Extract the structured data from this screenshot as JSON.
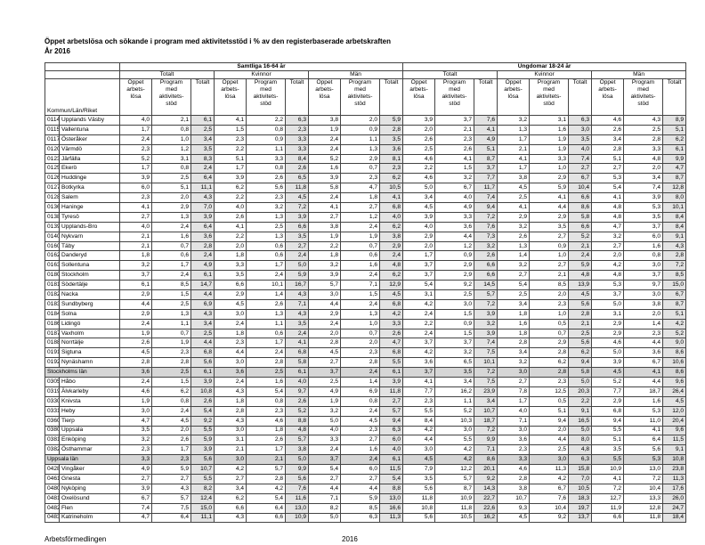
{
  "header": {
    "title": "Öppet arbetslösa och sökande i program med aktivitetsstöd i % av den registerbaserade arbetskraften",
    "subtitle": "År 2016"
  },
  "table": {
    "groups": [
      {
        "label": "Samtliga 16-64 år",
        "subgroups": [
          "Totalt",
          "Kvinnor",
          "Män"
        ]
      },
      {
        "label": "Ungdomar 18-24 år",
        "subgroups": [
          "Totalt",
          "Kvinnor",
          "Män"
        ]
      }
    ],
    "column_headers": [
      [
        "Öppet",
        "arbets-",
        "lösa"
      ],
      [
        "Program",
        "med",
        "aktivitets-",
        "stöd"
      ],
      [
        "Totalt"
      ]
    ],
    "stub_header": "Kommun/Län/Riket",
    "rows": [
      {
        "code": "0114",
        "name": "Upplands Väsby",
        "values": [
          "4,0",
          "2,1",
          "6,1",
          "4,1",
          "2,2",
          "6,3",
          "3,8",
          "2,0",
          "5,9",
          "3,9",
          "3,7",
          "7,6",
          "3,2",
          "3,1",
          "6,3",
          "4,6",
          "4,3",
          "8,9"
        ]
      },
      {
        "code": "0115",
        "name": "Vallentuna",
        "values": [
          "1,7",
          "0,8",
          "2,5",
          "1,5",
          "0,8",
          "2,3",
          "1,9",
          "0,9",
          "2,8",
          "2,0",
          "2,1",
          "4,1",
          "1,3",
          "1,6",
          "3,0",
          "2,6",
          "2,5",
          "5,1"
        ]
      },
      {
        "code": "0117",
        "name": "Österåker",
        "values": [
          "2,4",
          "1,0",
          "3,4",
          "2,3",
          "0,9",
          "3,3",
          "2,4",
          "1,1",
          "3,5",
          "2,6",
          "2,3",
          "4,9",
          "1,7",
          "1,9",
          "3,5",
          "3,4",
          "2,8",
          "6,2"
        ]
      },
      {
        "code": "0120",
        "name": "Värmdö",
        "values": [
          "2,3",
          "1,2",
          "3,5",
          "2,2",
          "1,1",
          "3,3",
          "2,4",
          "1,3",
          "3,6",
          "2,5",
          "2,6",
          "5,1",
          "2,1",
          "1,9",
          "4,0",
          "2,8",
          "3,3",
          "6,1"
        ]
      },
      {
        "code": "0123",
        "name": "Järfälla",
        "values": [
          "5,2",
          "3,1",
          "8,3",
          "5,1",
          "3,3",
          "8,4",
          "5,2",
          "2,9",
          "8,1",
          "4,6",
          "4,1",
          "8,7",
          "4,1",
          "3,3",
          "7,4",
          "5,1",
          "4,8",
          "9,9"
        ]
      },
      {
        "code": "0125",
        "name": "Ekerö",
        "values": [
          "1,7",
          "0,8",
          "2,4",
          "1,7",
          "0,8",
          "2,6",
          "1,6",
          "0,7",
          "2,3",
          "2,2",
          "1,5",
          "3,7",
          "1,7",
          "1,0",
          "2,7",
          "2,7",
          "2,0",
          "4,7"
        ]
      },
      {
        "code": "0126",
        "name": "Huddinge",
        "values": [
          "3,9",
          "2,5",
          "6,4",
          "3,9",
          "2,6",
          "6,5",
          "3,9",
          "2,3",
          "6,2",
          "4,6",
          "3,2",
          "7,7",
          "3,8",
          "2,9",
          "6,7",
          "5,3",
          "3,4",
          "8,7"
        ]
      },
      {
        "code": "0127",
        "name": "Botkyrka",
        "values": [
          "6,0",
          "5,1",
          "11,1",
          "6,2",
          "5,6",
          "11,8",
          "5,8",
          "4,7",
          "10,5",
          "5,0",
          "6,7",
          "11,7",
          "4,5",
          "5,9",
          "10,4",
          "5,4",
          "7,4",
          "12,8"
        ]
      },
      {
        "code": "0128",
        "name": "Salem",
        "values": [
          "2,3",
          "2,0",
          "4,3",
          "2,2",
          "2,3",
          "4,5",
          "2,4",
          "1,8",
          "4,1",
          "3,4",
          "4,0",
          "7,4",
          "2,5",
          "4,1",
          "6,6",
          "4,1",
          "3,9",
          "8,0"
        ]
      },
      {
        "code": "0136",
        "name": "Haninge",
        "values": [
          "4,1",
          "2,9",
          "7,0",
          "4,0",
          "3,2",
          "7,2",
          "4,1",
          "2,7",
          "6,8",
          "4,5",
          "4,9",
          "9,4",
          "4,1",
          "4,4",
          "8,6",
          "4,8",
          "5,3",
          "10,1"
        ]
      },
      {
        "code": "0138",
        "name": "Tyresö",
        "values": [
          "2,7",
          "1,3",
          "3,9",
          "2,6",
          "1,3",
          "3,9",
          "2,7",
          "1,2",
          "4,0",
          "3,9",
          "3,3",
          "7,2",
          "2,9",
          "2,9",
          "5,8",
          "4,8",
          "3,5",
          "8,4"
        ]
      },
      {
        "code": "0139",
        "name": "Upplands-Bro",
        "values": [
          "4,0",
          "2,4",
          "6,4",
          "4,1",
          "2,5",
          "6,6",
          "3,8",
          "2,4",
          "6,2",
          "4,0",
          "3,6",
          "7,6",
          "3,2",
          "3,5",
          "6,6",
          "4,7",
          "3,7",
          "8,4"
        ]
      },
      {
        "code": "0140",
        "name": "Nykvarn",
        "values": [
          "2,1",
          "1,6",
          "3,6",
          "2,2",
          "1,3",
          "3,5",
          "1,9",
          "1,9",
          "3,8",
          "2,9",
          "4,4",
          "7,3",
          "2,6",
          "2,7",
          "5,2",
          "3,2",
          "6,0",
          "9,1"
        ]
      },
      {
        "code": "0160",
        "name": "Täby",
        "values": [
          "2,1",
          "0,7",
          "2,8",
          "2,0",
          "0,6",
          "2,7",
          "2,2",
          "0,7",
          "2,9",
          "2,0",
          "1,2",
          "3,2",
          "1,3",
          "0,9",
          "2,1",
          "2,7",
          "1,6",
          "4,3"
        ]
      },
      {
        "code": "0162",
        "name": "Danderyd",
        "values": [
          "1,8",
          "0,6",
          "2,4",
          "1,8",
          "0,6",
          "2,4",
          "1,8",
          "0,6",
          "2,4",
          "1,7",
          "0,9",
          "2,6",
          "1,4",
          "1,0",
          "2,4",
          "2,0",
          "0,8",
          "2,8"
        ]
      },
      {
        "code": "0163",
        "name": "Sollentuna",
        "values": [
          "3,2",
          "1,7",
          "4,9",
          "3,3",
          "1,7",
          "5,0",
          "3,2",
          "1,6",
          "4,8",
          "3,7",
          "2,9",
          "6,6",
          "3,2",
          "2,7",
          "5,9",
          "4,2",
          "3,0",
          "7,2"
        ]
      },
      {
        "code": "0180",
        "name": "Stockholm",
        "values": [
          "3,7",
          "2,4",
          "6,1",
          "3,5",
          "2,4",
          "5,9",
          "3,9",
          "2,4",
          "6,2",
          "3,7",
          "2,9",
          "6,6",
          "2,7",
          "2,1",
          "4,8",
          "4,8",
          "3,7",
          "8,5"
        ]
      },
      {
        "code": "0181",
        "name": "Södertälje",
        "values": [
          "6,1",
          "8,5",
          "14,7",
          "6,6",
          "10,1",
          "16,7",
          "5,7",
          "7,1",
          "12,9",
          "5,4",
          "9,2",
          "14,5",
          "5,4",
          "8,5",
          "13,9",
          "5,3",
          "9,7",
          "15,0"
        ]
      },
      {
        "code": "0182",
        "name": "Nacka",
        "values": [
          "2,9",
          "1,5",
          "4,4",
          "2,9",
          "1,4",
          "4,3",
          "3,0",
          "1,5",
          "4,5",
          "3,1",
          "2,5",
          "5,7",
          "2,5",
          "2,0",
          "4,5",
          "3,7",
          "3,0",
          "6,7"
        ]
      },
      {
        "code": "0183",
        "name": "Sundbyberg",
        "values": [
          "4,4",
          "2,5",
          "6,9",
          "4,5",
          "2,6",
          "7,1",
          "4,4",
          "2,4",
          "6,8",
          "4,2",
          "3,0",
          "7,2",
          "3,4",
          "2,3",
          "5,6",
          "5,0",
          "3,8",
          "8,7"
        ]
      },
      {
        "code": "0184",
        "name": "Solna",
        "values": [
          "2,9",
          "1,3",
          "4,3",
          "3,0",
          "1,3",
          "4,3",
          "2,9",
          "1,3",
          "4,2",
          "2,4",
          "1,5",
          "3,9",
          "1,8",
          "1,0",
          "2,8",
          "3,1",
          "2,0",
          "5,1"
        ]
      },
      {
        "code": "0186",
        "name": "Lidingö",
        "values": [
          "2,4",
          "1,1",
          "3,4",
          "2,4",
          "1,1",
          "3,5",
          "2,4",
          "1,0",
          "3,3",
          "2,2",
          "0,9",
          "3,2",
          "1,6",
          "0,5",
          "2,1",
          "2,9",
          "1,4",
          "4,2"
        ]
      },
      {
        "code": "0187",
        "name": "Vaxholm",
        "values": [
          "1,9",
          "0,7",
          "2,5",
          "1,8",
          "0,6",
          "2,4",
          "2,0",
          "0,7",
          "2,6",
          "2,4",
          "1,5",
          "3,9",
          "1,8",
          "0,7",
          "2,5",
          "2,9",
          "2,3",
          "5,2"
        ]
      },
      {
        "code": "0188",
        "name": "Norrtälje",
        "values": [
          "2,6",
          "1,9",
          "4,4",
          "2,3",
          "1,7",
          "4,1",
          "2,8",
          "2,0",
          "4,7",
          "3,7",
          "3,7",
          "7,4",
          "2,8",
          "2,9",
          "5,6",
          "4,6",
          "4,4",
          "9,0"
        ]
      },
      {
        "code": "0191",
        "name": "Sigtuna",
        "values": [
          "4,5",
          "2,3",
          "6,8",
          "4,4",
          "2,4",
          "6,8",
          "4,5",
          "2,3",
          "6,8",
          "4,2",
          "3,2",
          "7,5",
          "3,4",
          "2,8",
          "6,2",
          "5,0",
          "3,6",
          "8,6"
        ]
      },
      {
        "code": "0192",
        "name": "Nynäshamn",
        "values": [
          "2,8",
          "2,8",
          "5,6",
          "3,0",
          "2,8",
          "5,8",
          "2,7",
          "2,8",
          "5,5",
          "3,6",
          "6,5",
          "10,1",
          "3,2",
          "6,2",
          "9,4",
          "3,9",
          "6,7",
          "10,6"
        ]
      },
      {
        "name": "Stockholms län",
        "values": [
          "3,6",
          "2,5",
          "6,1",
          "3,6",
          "2,5",
          "6,1",
          "3,7",
          "2,4",
          "6,1",
          "3,7",
          "3,5",
          "7,2",
          "3,0",
          "2,8",
          "5,8",
          "4,5",
          "4,1",
          "8,6"
        ]
      },
      {
        "code": "0305",
        "name": "Håbo",
        "values": [
          "2,4",
          "1,5",
          "3,9",
          "2,4",
          "1,6",
          "4,0",
          "2,5",
          "1,4",
          "3,9",
          "4,1",
          "3,4",
          "7,5",
          "2,7",
          "2,3",
          "5,0",
          "5,2",
          "4,4",
          "9,6"
        ]
      },
      {
        "code": "0319",
        "name": "Älvkarleby",
        "values": [
          "4,6",
          "6,2",
          "10,8",
          "4,3",
          "5,4",
          "9,7",
          "4,9",
          "6,9",
          "11,8",
          "7,7",
          "16,2",
          "23,9",
          "7,8",
          "12,5",
          "20,3",
          "7,7",
          "18,7",
          "26,4"
        ]
      },
      {
        "code": "0330",
        "name": "Knivsta",
        "values": [
          "1,9",
          "0,8",
          "2,6",
          "1,8",
          "0,8",
          "2,6",
          "1,9",
          "0,8",
          "2,7",
          "2,3",
          "1,1",
          "3,4",
          "1,7",
          "0,5",
          "2,2",
          "2,9",
          "1,6",
          "4,5"
        ]
      },
      {
        "code": "0331",
        "name": "Heby",
        "values": [
          "3,0",
          "2,4",
          "5,4",
          "2,8",
          "2,3",
          "5,2",
          "3,2",
          "2,4",
          "5,7",
          "5,5",
          "5,2",
          "10,7",
          "4,0",
          "5,1",
          "9,1",
          "6,8",
          "5,3",
          "12,0"
        ]
      },
      {
        "code": "0360",
        "name": "Tierp",
        "values": [
          "4,7",
          "4,5",
          "9,2",
          "4,3",
          "4,6",
          "8,8",
          "5,0",
          "4,5",
          "9,4",
          "8,4",
          "10,3",
          "18,7",
          "7,1",
          "9,4",
          "16,5",
          "9,4",
          "11,0",
          "20,4"
        ]
      },
      {
        "code": "0380",
        "name": "Uppsala",
        "values": [
          "3,5",
          "2,0",
          "5,5",
          "3,0",
          "1,8",
          "4,8",
          "4,0",
          "2,3",
          "6,3",
          "4,2",
          "3,0",
          "7,2",
          "3,0",
          "2,0",
          "5,0",
          "5,5",
          "4,1",
          "9,6"
        ]
      },
      {
        "code": "0381",
        "name": "Enköping",
        "values": [
          "3,2",
          "2,6",
          "5,9",
          "3,1",
          "2,6",
          "5,7",
          "3,3",
          "2,7",
          "6,0",
          "4,4",
          "5,5",
          "9,9",
          "3,6",
          "4,4",
          "8,0",
          "5,1",
          "6,4",
          "11,5"
        ]
      },
      {
        "code": "0382",
        "name": "Östhammar",
        "values": [
          "2,3",
          "1,7",
          "3,9",
          "2,1",
          "1,7",
          "3,8",
          "2,4",
          "1,6",
          "4,0",
          "3,0",
          "4,2",
          "7,1",
          "2,3",
          "2,5",
          "4,8",
          "3,5",
          "5,6",
          "9,1"
        ]
      },
      {
        "name": "Uppsala län",
        "values": [
          "3,3",
          "2,3",
          "5,6",
          "3,0",
          "2,1",
          "5,0",
          "3,7",
          "2,4",
          "6,1",
          "4,5",
          "4,2",
          "8,6",
          "3,3",
          "3,0",
          "6,3",
          "5,5",
          "5,3",
          "10,8"
        ]
      },
      {
        "code": "0428",
        "name": "Vingåker",
        "values": [
          "4,9",
          "5,9",
          "10,7",
          "4,2",
          "5,7",
          "9,9",
          "5,4",
          "6,0",
          "11,5",
          "7,9",
          "12,2",
          "20,1",
          "4,6",
          "11,3",
          "15,8",
          "10,9",
          "13,0",
          "23,8"
        ]
      },
      {
        "code": "0461",
        "name": "Gnesta",
        "values": [
          "2,7",
          "2,7",
          "5,5",
          "2,7",
          "2,8",
          "5,6",
          "2,7",
          "2,7",
          "5,4",
          "3,5",
          "5,7",
          "9,2",
          "2,8",
          "4,2",
          "7,0",
          "4,1",
          "7,2",
          "11,3"
        ]
      },
      {
        "code": "0480",
        "name": "Nyköping",
        "values": [
          "3,9",
          "4,3",
          "8,2",
          "3,4",
          "4,2",
          "7,6",
          "4,4",
          "4,4",
          "8,8",
          "5,6",
          "8,7",
          "14,3",
          "3,8",
          "6,7",
          "10,5",
          "7,2",
          "10,4",
          "17,6"
        ]
      },
      {
        "code": "0481",
        "name": "Oxelösund",
        "values": [
          "6,7",
          "5,7",
          "12,4",
          "6,2",
          "5,4",
          "11,6",
          "7,1",
          "5,9",
          "13,0",
          "11,8",
          "10,9",
          "22,7",
          "10,7",
          "7,6",
          "18,3",
          "12,7",
          "13,3",
          "26,0"
        ]
      },
      {
        "code": "0482",
        "name": "Flen",
        "values": [
          "7,4",
          "7,5",
          "15,0",
          "6,6",
          "6,4",
          "13,0",
          "8,2",
          "8,5",
          "16,6",
          "10,8",
          "11,8",
          "22,6",
          "9,3",
          "10,4",
          "19,7",
          "11,9",
          "12,8",
          "24,7"
        ]
      },
      {
        "code": "0483",
        "name": "Katrineholm",
        "values": [
          "4,7",
          "6,4",
          "11,1",
          "4,3",
          "6,6",
          "10,9",
          "5,0",
          "6,3",
          "11,3",
          "5,6",
          "10,5",
          "16,2",
          "4,5",
          "9,2",
          "13,7",
          "6,6",
          "11,8",
          "18,4"
        ]
      }
    ]
  },
  "footer": {
    "left": "Arbetsförmedlingen",
    "center": "2016"
  }
}
